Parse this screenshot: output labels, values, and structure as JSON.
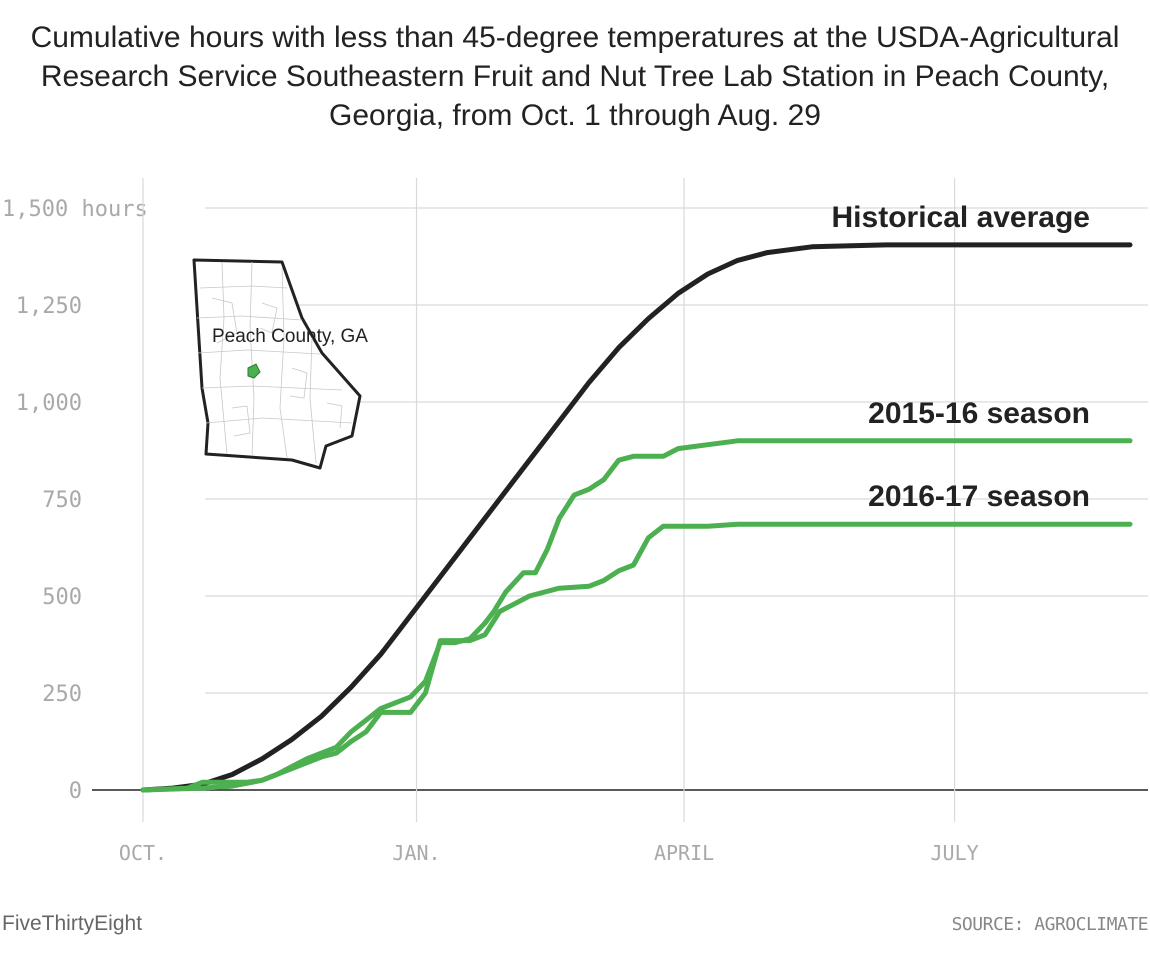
{
  "title": "Cumulative hours with less than 45-degree temperatures at the USDA-Agricultural Research Service Southeastern Fruit and Nut Tree Lab Station in Peach County, Georgia, from Oct. 1 through Aug. 29",
  "brand": "FiveThirtyEight",
  "source": "SOURCE: AGROCLIMATE",
  "map": {
    "label": "Peach County, GA",
    "highlight_color": "#4caf50"
  },
  "chart_data": {
    "type": "line",
    "title": "Cumulative hours with less than 45-degree temperatures at the USDA-Agricultural Research Service Southeastern Fruit and Nut Tree Lab Station in Peach County, Georgia, from Oct. 1 through Aug. 29",
    "xlabel": "",
    "ylabel": "hours",
    "x_unit": "days since Oct. 1",
    "xlim": [
      0,
      332
    ],
    "ylim": [
      0,
      1500
    ],
    "x_ticks": [
      {
        "value": 0,
        "label": "OCT."
      },
      {
        "value": 92,
        "label": "JAN."
      },
      {
        "value": 182,
        "label": "APRIL"
      },
      {
        "value": 273,
        "label": "JULY"
      }
    ],
    "y_ticks": [
      {
        "value": 0,
        "label": "0"
      },
      {
        "value": 250,
        "label": "250"
      },
      {
        "value": 500,
        "label": "500"
      },
      {
        "value": 750,
        "label": "750"
      },
      {
        "value": 1000,
        "label": "1,000"
      },
      {
        "value": 1250,
        "label": "1,250"
      },
      {
        "value": 1500,
        "label": "1,500 hours"
      }
    ],
    "series": [
      {
        "name": "Historical average",
        "color": "#222222",
        "x": [
          0,
          10,
          20,
          30,
          40,
          50,
          60,
          70,
          80,
          90,
          100,
          110,
          120,
          135,
          150,
          160,
          170,
          180,
          190,
          200,
          210,
          225,
          250,
          280,
          300,
          320,
          336
        ],
        "y": [
          0,
          5,
          15,
          40,
          80,
          130,
          190,
          265,
          350,
          450,
          550,
          650,
          750,
          900,
          1050,
          1140,
          1215,
          1280,
          1330,
          1365,
          1385,
          1400,
          1405,
          1405,
          1405,
          1405,
          1405
        ]
      },
      {
        "name": "2015-16 season",
        "color": "#4caf50",
        "x": [
          0,
          20,
          30,
          40,
          45,
          50,
          55,
          60,
          65,
          70,
          75,
          80,
          85,
          90,
          95,
          100,
          105,
          110,
          115,
          118,
          122,
          128,
          132,
          136,
          140,
          145,
          150,
          155,
          160,
          165,
          170,
          175,
          180,
          185,
          190,
          200,
          220,
          260,
          300,
          336
        ],
        "y": [
          0,
          5,
          10,
          25,
          40,
          60,
          80,
          95,
          110,
          150,
          180,
          210,
          225,
          240,
          280,
          380,
          380,
          390,
          430,
          460,
          510,
          560,
          560,
          620,
          700,
          760,
          775,
          800,
          850,
          860,
          860,
          860,
          880,
          885,
          890,
          900,
          900,
          900,
          900,
          900
        ]
      },
      {
        "name": "2016-17 season",
        "color": "#4caf50",
        "x": [
          0,
          15,
          20,
          30,
          35,
          40,
          50,
          60,
          65,
          70,
          75,
          80,
          85,
          90,
          95,
          100,
          105,
          110,
          115,
          120,
          125,
          130,
          140,
          150,
          155,
          160,
          165,
          170,
          175,
          180,
          185,
          190,
          200,
          220,
          260,
          300,
          334
        ],
        "y": [
          0,
          5,
          20,
          20,
          20,
          25,
          55,
          85,
          95,
          125,
          150,
          200,
          200,
          200,
          250,
          385,
          385,
          385,
          400,
          460,
          480,
          500,
          520,
          525,
          540,
          565,
          580,
          650,
          680,
          680,
          680,
          680,
          685,
          685,
          685,
          685,
          685
        ]
      }
    ]
  }
}
